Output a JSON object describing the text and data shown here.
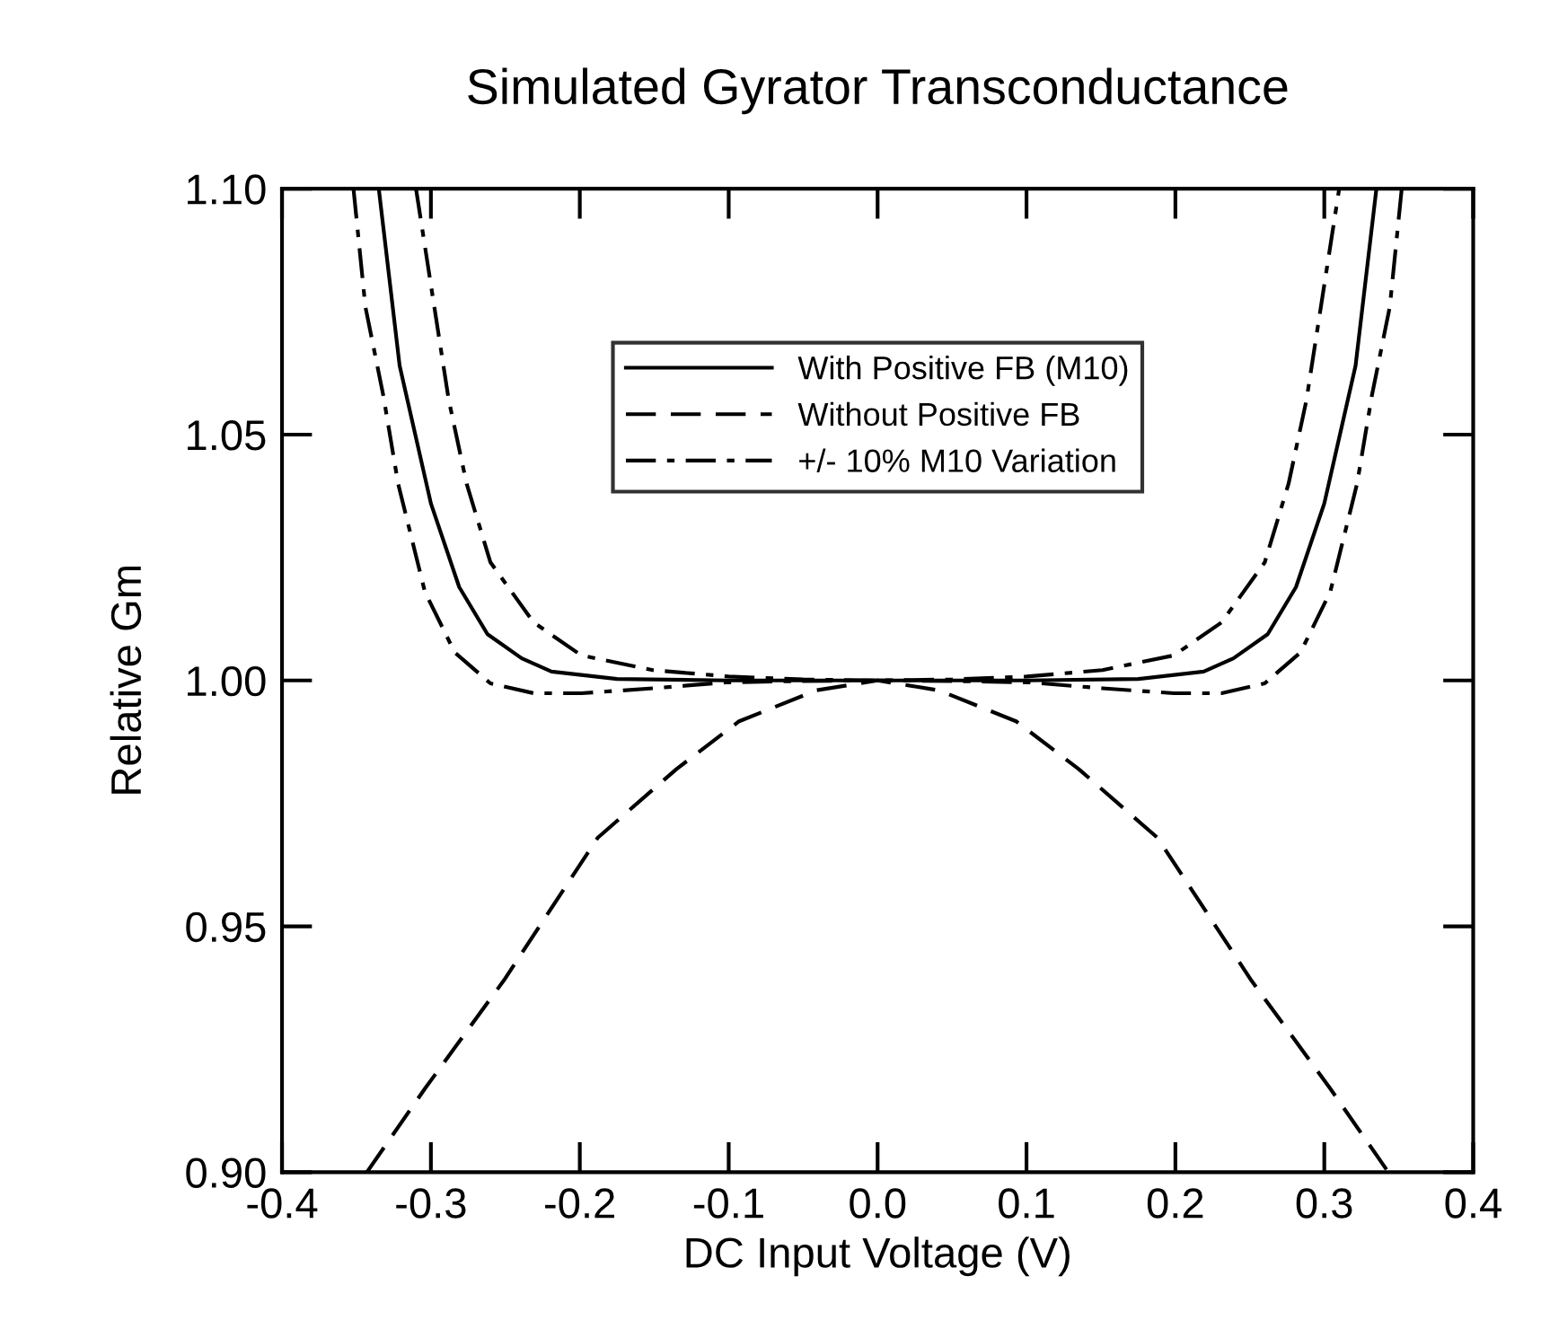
{
  "chart_data": {
    "type": "line",
    "title": "Simulated Gyrator Transconductance",
    "xlabel": "DC Input Voltage (V)",
    "ylabel": "Relative Gm",
    "xlim": [
      -0.4,
      0.4
    ],
    "xticks": [
      {
        "value": -0.4,
        "label": "-0.4"
      },
      {
        "value": -0.3,
        "label": "-0.3"
      },
      {
        "value": -0.2,
        "label": "-0.2"
      },
      {
        "value": -0.1,
        "label": "-0.1"
      },
      {
        "value": 0.0,
        "label": "0.0"
      },
      {
        "value": 0.1,
        "label": "0.1"
      },
      {
        "value": 0.2,
        "label": "0.2"
      },
      {
        "value": 0.3,
        "label": "0.3"
      },
      {
        "value": 0.4,
        "label": "0.4"
      }
    ],
    "ylim": [
      0.9,
      1.1
    ],
    "yticks": [
      {
        "value": 0.9,
        "label": "0.90"
      },
      {
        "value": 0.95,
        "label": "0.95"
      },
      {
        "value": 1.0,
        "label": "1.00"
      },
      {
        "value": 1.05,
        "label": "1.05"
      },
      {
        "value": 1.1,
        "label": "1.10"
      }
    ],
    "grid": false,
    "legend": "top",
    "marker": "none",
    "series": [
      {
        "name": "With Positive FB (M10)",
        "color": "#000000",
        "line_style": "solid",
        "x": [
          -0.335,
          -0.321,
          -0.3,
          -0.281,
          -0.262,
          -0.239,
          -0.219,
          -0.175,
          -0.1,
          0.0,
          0.1,
          0.175,
          0.219,
          0.239,
          0.262,
          0.281,
          0.3,
          0.321,
          0.335
        ],
        "values": [
          1.1,
          1.064,
          1.036,
          1.019,
          1.0094,
          1.0045,
          1.0018,
          1.0003,
          1.0,
          1.0,
          1.0,
          1.0003,
          1.0018,
          1.0045,
          1.0094,
          1.019,
          1.036,
          1.064,
          1.1
        ]
      },
      {
        "name": "Without Positive FB",
        "color": "#000000",
        "line_style": "dashed",
        "x": [
          -0.343,
          -0.304,
          -0.251,
          -0.188,
          -0.135,
          -0.093,
          -0.041,
          0.0,
          0.041,
          0.093,
          0.135,
          0.188,
          0.251,
          0.304,
          0.343
        ],
        "values": [
          0.9,
          0.917,
          0.939,
          0.968,
          0.982,
          0.9917,
          0.998,
          1.0,
          0.998,
          0.9917,
          0.982,
          0.968,
          0.939,
          0.917,
          0.9
        ]
      },
      {
        "name": "+/- 10% M10 Variation",
        "color": "#000000",
        "line_style": "dashdot",
        "x": [
          -0.31,
          -0.288,
          -0.276,
          -0.26,
          -0.231,
          -0.199,
          -0.151,
          -0.1,
          -0.05,
          0.0,
          0.05,
          0.1,
          0.151,
          0.199,
          0.231,
          0.26,
          0.276,
          0.288,
          0.31
        ],
        "values": [
          1.1,
          1.057,
          1.04,
          1.024,
          1.0118,
          1.0051,
          1.0021,
          1.0008,
          1.0002,
          1.0,
          1.0002,
          1.0008,
          1.0021,
          1.0051,
          1.0118,
          1.024,
          1.04,
          1.057,
          1.1
        ]
      },
      {
        "color": "#000000",
        "line_style": "dashdot",
        "x": [
          -0.352,
          -0.344,
          -0.332,
          -0.322,
          -0.304,
          -0.284,
          -0.26,
          -0.231,
          -0.199,
          -0.151,
          -0.102,
          -0.05,
          0.0,
          0.05,
          0.102,
          0.151,
          0.199,
          0.231,
          0.26,
          0.284,
          0.304,
          0.322,
          0.332,
          0.344,
          0.352
        ],
        "values": [
          1.1,
          1.076,
          1.058,
          1.04,
          1.018,
          1.0057,
          0.9994,
          0.9974,
          0.9974,
          0.9984,
          0.9996,
          0.9999,
          1.0,
          0.9999,
          0.9996,
          0.9984,
          0.9974,
          0.9974,
          0.9994,
          1.0057,
          1.018,
          1.04,
          1.058,
          1.076,
          1.1
        ]
      }
    ]
  }
}
